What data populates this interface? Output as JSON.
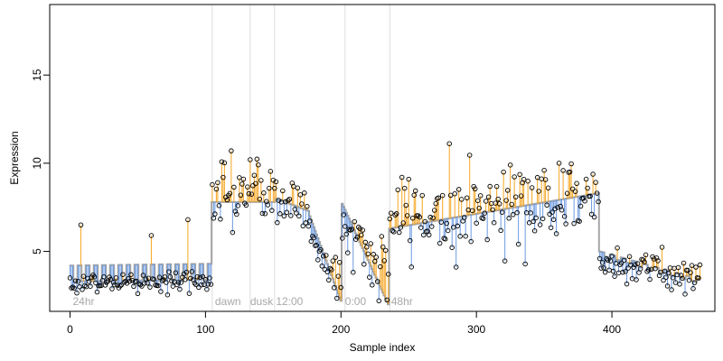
{
  "chart_data": {
    "type": "scatter",
    "xlabel": "Sample index",
    "ylabel": "Expression",
    "xlim": [
      -15,
      476
    ],
    "ylim": [
      1.6,
      19.0
    ],
    "x_ticks": [
      0,
      100,
      200,
      300,
      400
    ],
    "y_ticks": [
      5,
      10,
      15
    ],
    "grid": false,
    "legend": "none",
    "colors": {
      "fitted_line": "#a6a6a6",
      "residual_above": "#f5a623",
      "residual_below": "#6b9ae0",
      "point_edge": "#000000",
      "annotation": "#a8a8a8",
      "separator": "#dcdcdc"
    },
    "annotations": [
      {
        "label": "24hr",
        "x": 2
      },
      {
        "label": "dawn",
        "x": 107
      },
      {
        "label": "dusk",
        "x": 133
      },
      {
        "label": "12:00",
        "x": 152
      },
      {
        "label": "0:00",
        "x": 203
      },
      {
        "label": "48hr",
        "x": 237
      }
    ],
    "separators_x": [
      105,
      133,
      151,
      203,
      236
    ],
    "segments": [
      {
        "from": 0,
        "to": 104,
        "fit_start": 3.3,
        "fit_end": 3.4,
        "pulse": 0.9,
        "period": 6,
        "pts_mean": 3.25,
        "pts_sd": 0.3
      },
      {
        "from": 105,
        "to": 151,
        "fit_start": 7.8,
        "fit_end": 7.8,
        "pulse": 0,
        "period": 6,
        "pts_mean": 8.3,
        "pts_sd": 0.95
      },
      {
        "from": 152,
        "to": 176,
        "fit_start": 8.0,
        "fit_end": 7.3,
        "pulse": 0,
        "period": 6,
        "pts_mean": 7.7,
        "pts_sd": 0.9
      },
      {
        "from": 177,
        "to": 200,
        "fit_start": 7.0,
        "fit_end": 2.2,
        "pulse": 0,
        "period": 6,
        "pts_mean": 4.5,
        "pts_sd": 0.6
      },
      {
        "from": 201,
        "to": 235,
        "fit_start": 7.7,
        "fit_end": 2.0,
        "pulse": 0,
        "period": 6,
        "pts_mean": 5.0,
        "pts_sd": 1.0
      },
      {
        "from": 236,
        "to": 390,
        "fit_start": 6.3,
        "fit_end": 8.3,
        "pulse": 0,
        "period": 6,
        "pts_mean": 7.5,
        "pts_sd": 1.2
      },
      {
        "from": 391,
        "to": 465,
        "fit_start": 4.8,
        "fit_end": 3.2,
        "pulse": 0.2,
        "period": 8,
        "pts_mean": 4.0,
        "pts_sd": 0.5
      }
    ],
    "highlights": [
      {
        "x": 8,
        "y": 6.5
      },
      {
        "x": 60,
        "y": 5.9
      },
      {
        "x": 87,
        "y": 6.8
      },
      {
        "x": 133,
        "y": 10.2
      },
      {
        "x": 245,
        "y": 9.2
      },
      {
        "x": 320,
        "y": 9.5
      },
      {
        "x": 325,
        "y": 9.9
      },
      {
        "x": 361,
        "y": 10.0
      }
    ]
  }
}
